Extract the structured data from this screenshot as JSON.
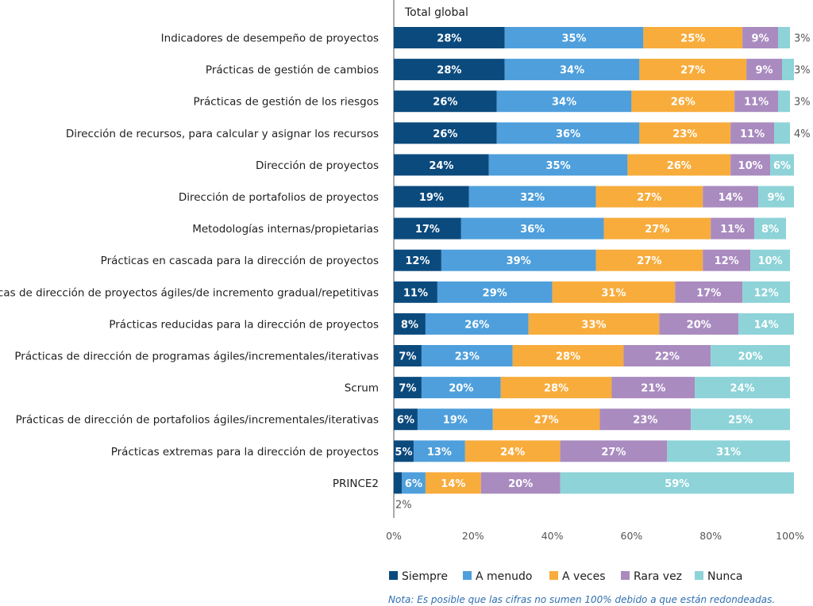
{
  "chart_data": {
    "type": "bar",
    "orientation": "horizontal",
    "stacked": true,
    "title": "Total global",
    "xlim": [
      0,
      100
    ],
    "x_ticks": [
      "0%",
      "20%",
      "40%",
      "60%",
      "80%",
      "100%"
    ],
    "grid": false,
    "legend_position": "bottom",
    "categories": [
      "Indicadores de desempeño de proyectos",
      "Prácticas de gestión de cambios",
      "Prácticas de gestión de los riesgos",
      "Dirección de recursos, para calcular y asignar los recursos",
      "Dirección de proyectos",
      "Dirección de portafolios de proyectos",
      "Metodologías internas/propietarias",
      "Prácticas en cascada para la dirección de proyectos",
      "Prácticas de dirección de proyectos ágiles/de incremento gradual/repetitivas",
      "Prácticas reducidas para la dirección de proyectos",
      "Prácticas de dirección de programas ágiles/incrementales/iterativas",
      "Scrum",
      "Prácticas de dirección de portafolios ágiles/incrementales/iterativas",
      "Prácticas extremas para la dirección de proyectos",
      "PRINCE2"
    ],
    "series": [
      {
        "name": "Siempre",
        "color": "#0b4a7d",
        "values": [
          28,
          28,
          26,
          26,
          24,
          19,
          17,
          12,
          11,
          8,
          7,
          7,
          6,
          5,
          2
        ]
      },
      {
        "name": "A menudo",
        "color": "#4e9fdc",
        "values": [
          35,
          34,
          34,
          36,
          35,
          32,
          36,
          39,
          29,
          26,
          23,
          20,
          19,
          13,
          6
        ]
      },
      {
        "name": "A veces",
        "color": "#f8ac3c",
        "values": [
          25,
          27,
          26,
          23,
          26,
          27,
          27,
          27,
          31,
          33,
          28,
          28,
          27,
          24,
          14
        ]
      },
      {
        "name": "Rara vez",
        "color": "#a98bbf",
        "values": [
          9,
          9,
          11,
          11,
          10,
          14,
          11,
          12,
          17,
          20,
          22,
          21,
          23,
          27,
          20
        ]
      },
      {
        "name": "Nunca",
        "color": "#8dd3d8",
        "values": [
          3,
          3,
          3,
          4,
          6,
          9,
          8,
          10,
          12,
          14,
          20,
          24,
          25,
          31,
          59
        ]
      }
    ]
  },
  "note": "Nota: Es posible que las cifras no sumen 100% debido a que están redondeadas."
}
